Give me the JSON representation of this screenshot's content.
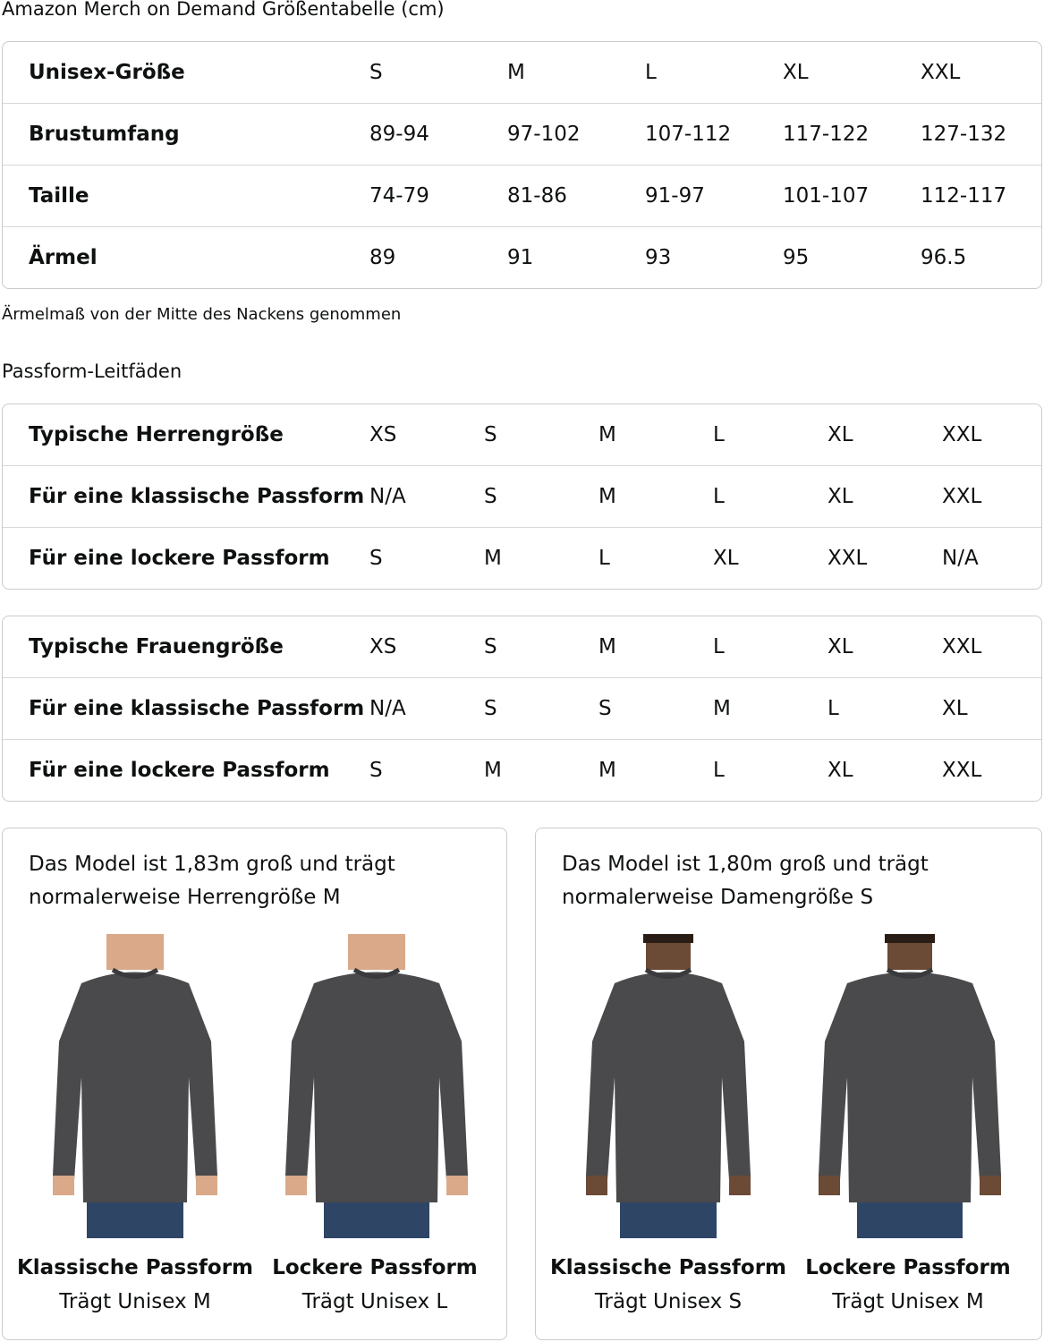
{
  "title": "Amazon Merch on Demand Größentabelle (cm)",
  "size_table": {
    "rows": [
      [
        "Unisex-Größe",
        "S",
        "M",
        "L",
        "XL",
        "XXL"
      ],
      [
        "Brustumfang",
        "89-94",
        "97-102",
        "107-112",
        "117-122",
        "127-132"
      ],
      [
        "Taille",
        "74-79",
        "81-86",
        "91-97",
        "101-107",
        "112-117"
      ],
      [
        "Ärmel",
        "89",
        "91",
        "93",
        "95",
        "96.5"
      ]
    ]
  },
  "note": "Ärmelmaß von der Mitte des Nackens genommen",
  "fit_heading": "Passform-Leitfäden",
  "men_table": {
    "rows": [
      [
        "Typische Herrengröße",
        "XS",
        "S",
        "M",
        "L",
        "XL",
        "XXL"
      ],
      [
        "Für eine klassische Passform",
        "N/A",
        "S",
        "M",
        "L",
        "XL",
        "XXL"
      ],
      [
        "Für eine lockere Passform",
        "S",
        "M",
        "L",
        "XL",
        "XXL",
        "N/A"
      ]
    ]
  },
  "women_table": {
    "rows": [
      [
        "Typische Frauengröße",
        "XS",
        "S",
        "M",
        "L",
        "XL",
        "XXL"
      ],
      [
        "Für eine klassische Passform",
        "N/A",
        "S",
        "S",
        "M",
        "L",
        "XL"
      ],
      [
        "Für eine lockere Passform",
        "S",
        "M",
        "M",
        "L",
        "XL",
        "XXL"
      ]
    ]
  },
  "cards": [
    {
      "desc1": "Das Model ist 1,83m groß und trägt",
      "desc2": "normalerweise Herrengröße M",
      "figures": [
        {
          "fit": "Klassische Passform",
          "wears": "Trägt Unisex M"
        },
        {
          "fit": "Lockere Passform",
          "wears": "Trägt Unisex L"
        }
      ]
    },
    {
      "desc1": "Das Model ist 1,80m groß und trägt",
      "desc2": "normalerweise Damengröße S",
      "figures": [
        {
          "fit": "Klassische Passform",
          "wears": "Trägt Unisex S"
        },
        {
          "fit": "Lockere Passform",
          "wears": "Trägt Unisex M"
        }
      ]
    }
  ],
  "colors": {
    "sweatshirt": "#4a4a4c",
    "jeans": "#2f4566",
    "border": "#c9cccc"
  }
}
